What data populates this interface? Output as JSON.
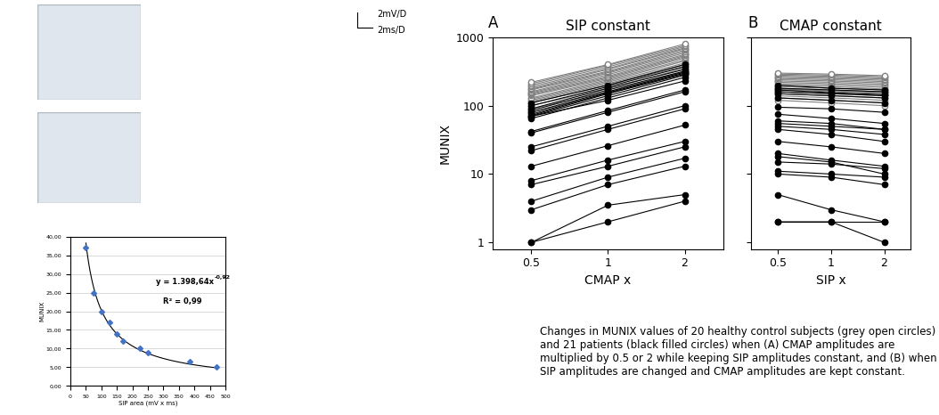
{
  "figure": {
    "caption": "Changes in MUNIX values of 20 healthy control subjects (grey open circles) and 21 patients (black filled circles) when (A) CMAP amplitudes are multiplied by 0.5 or 2 while keeping SIP amplitudes constant, and (B) when SIP amplitudes are changed and CMAP amplitudes are kept constant.",
    "scale_labels": [
      "2mV/D",
      "2ms/D"
    ]
  },
  "chart_data": [
    {
      "type": "scatter",
      "xlabel": "SIP area (mV x ms)",
      "ylabel": "MUNIX",
      "x": [
        50,
        75,
        100,
        125,
        150,
        170,
        225,
        250,
        385,
        470
      ],
      "values": [
        37,
        25,
        20,
        17,
        14,
        12,
        10,
        9,
        6.5,
        5
      ],
      "color": "#4472c4",
      "marker": "diamond",
      "grid": "y",
      "fit": {
        "coefficient": 1398.64,
        "exponent": -0.92
      },
      "annotations": [
        "y = 1.398,64x",
        "-0,92",
        "R² = 0,99"
      ],
      "xlim": [
        0,
        500
      ],
      "xticks": [
        0,
        50,
        100,
        150,
        200,
        250,
        300,
        350,
        400,
        450,
        500
      ],
      "ylim": [
        0,
        40
      ],
      "yticks": [
        {
          "value": 0,
          "label": "0,00"
        },
        {
          "value": 5,
          "label": "5,00"
        },
        {
          "value": 10,
          "label": "10,00"
        },
        {
          "value": 15,
          "label": "15,00"
        },
        {
          "value": 20,
          "label": "20,00"
        },
        {
          "value": 25,
          "label": "25,00"
        },
        {
          "value": 30,
          "label": "30,00"
        },
        {
          "value": 35,
          "label": "35,00"
        },
        {
          "value": 40,
          "label": "40,00"
        }
      ]
    },
    {
      "type": "line",
      "title": "SIP constant",
      "annotations": [
        "A"
      ],
      "xlabel": "CMAP x",
      "ylabel": "MUNIX",
      "categories": [
        "0.5",
        "1",
        "2"
      ],
      "log": "y",
      "ylim": [
        0.8,
        1000
      ],
      "yticks": [
        1,
        10,
        100,
        1000
      ],
      "series": [
        {
          "color": "#808080",
          "marker": "open_circle",
          "values": [
            90,
            160,
            320
          ]
        },
        {
          "color": "#808080",
          "marker": "open_circle",
          "values": [
            100,
            180,
            350
          ]
        },
        {
          "color": "#808080",
          "marker": "open_circle",
          "values": [
            110,
            200,
            380
          ]
        },
        {
          "color": "#808080",
          "marker": "open_circle",
          "values": [
            115,
            210,
            400
          ]
        },
        {
          "color": "#808080",
          "marker": "open_circle",
          "values": [
            120,
            220,
            420
          ]
        },
        {
          "color": "#808080",
          "marker": "open_circle",
          "values": [
            125,
            230,
            450
          ]
        },
        {
          "color": "#808080",
          "marker": "open_circle",
          "values": [
            130,
            240,
            470
          ]
        },
        {
          "color": "#808080",
          "marker": "open_circle",
          "values": [
            140,
            250,
            500
          ]
        },
        {
          "color": "#808080",
          "marker": "open_circle",
          "values": [
            145,
            260,
            520
          ]
        },
        {
          "color": "#808080",
          "marker": "open_circle",
          "values": [
            150,
            270,
            540
          ]
        },
        {
          "color": "#808080",
          "marker": "open_circle",
          "values": [
            155,
            285,
            560
          ]
        },
        {
          "color": "#808080",
          "marker": "open_circle",
          "values": [
            160,
            300,
            590
          ]
        },
        {
          "color": "#808080",
          "marker": "open_circle",
          "values": [
            170,
            310,
            620
          ]
        },
        {
          "color": "#808080",
          "marker": "open_circle",
          "values": [
            175,
            320,
            650
          ]
        },
        {
          "color": "#808080",
          "marker": "open_circle",
          "values": [
            180,
            340,
            680
          ]
        },
        {
          "color": "#808080",
          "marker": "open_circle",
          "values": [
            190,
            350,
            700
          ]
        },
        {
          "color": "#808080",
          "marker": "open_circle",
          "values": [
            200,
            370,
            730
          ]
        },
        {
          "color": "#808080",
          "marker": "open_circle",
          "values": [
            210,
            390,
            760
          ]
        },
        {
          "color": "#808080",
          "marker": "open_circle",
          "values": [
            220,
            400,
            800
          ]
        },
        {
          "color": "#808080",
          "marker": "open_circle",
          "values": [
            80,
            150,
            300
          ]
        },
        {
          "color": "#000000",
          "marker": "filled_circle",
          "values": [
            1,
            2,
            4
          ]
        },
        {
          "color": "#000000",
          "marker": "filled_circle",
          "values": [
            1,
            3.5,
            5
          ]
        },
        {
          "color": "#000000",
          "marker": "filled_circle",
          "values": [
            3,
            7,
            13
          ]
        },
        {
          "color": "#000000",
          "marker": "filled_circle",
          "values": [
            4,
            9,
            17
          ]
        },
        {
          "color": "#000000",
          "marker": "filled_circle",
          "values": [
            7,
            13,
            25
          ]
        },
        {
          "color": "#000000",
          "marker": "filled_circle",
          "values": [
            8,
            16,
            30
          ]
        },
        {
          "color": "#000000",
          "marker": "filled_circle",
          "values": [
            13,
            26,
            52
          ]
        },
        {
          "color": "#000000",
          "marker": "filled_circle",
          "values": [
            22,
            45,
            90
          ]
        },
        {
          "color": "#000000",
          "marker": "filled_circle",
          "values": [
            25,
            50,
            100
          ]
        },
        {
          "color": "#000000",
          "marker": "filled_circle",
          "values": [
            40,
            80,
            160
          ]
        },
        {
          "color": "#000000",
          "marker": "filled_circle",
          "values": [
            42,
            85,
            170
          ]
        },
        {
          "color": "#000000",
          "marker": "filled_circle",
          "values": [
            65,
            130,
            260
          ]
        },
        {
          "color": "#000000",
          "marker": "filled_circle",
          "values": [
            70,
            140,
            280
          ]
        },
        {
          "color": "#000000",
          "marker": "filled_circle",
          "values": [
            72,
            150,
            290
          ]
        },
        {
          "color": "#000000",
          "marker": "filled_circle",
          "values": [
            75,
            155,
            300
          ]
        },
        {
          "color": "#000000",
          "marker": "filled_circle",
          "values": [
            80,
            160,
            310
          ]
        },
        {
          "color": "#000000",
          "marker": "filled_circle",
          "values": [
            85,
            170,
            320
          ]
        },
        {
          "color": "#000000",
          "marker": "filled_circle",
          "values": [
            90,
            180,
            340
          ]
        },
        {
          "color": "#000000",
          "marker": "filled_circle",
          "values": [
            100,
            190,
            370
          ]
        },
        {
          "color": "#000000",
          "marker": "filled_circle",
          "values": [
            110,
            200,
            400
          ]
        },
        {
          "color": "#000000",
          "marker": "filled_circle",
          "values": [
            70,
            120,
            230
          ]
        }
      ]
    },
    {
      "type": "line",
      "title": "CMAP constant",
      "annotations": [
        "B"
      ],
      "xlabel": "SIP x",
      "categories": [
        "0.5",
        "1",
        "2"
      ],
      "log": "y",
      "ylim": [
        0.8,
        1000
      ],
      "yticks": [
        1,
        10,
        100,
        1000
      ],
      "tick_labels": "x",
      "series": [
        {
          "color": "#808080",
          "marker": "open_circle",
          "values": [
            130,
            120,
            110
          ]
        },
        {
          "color": "#808080",
          "marker": "open_circle",
          "values": [
            140,
            130,
            120
          ]
        },
        {
          "color": "#808080",
          "marker": "open_circle",
          "values": [
            150,
            140,
            130
          ]
        },
        {
          "color": "#808080",
          "marker": "open_circle",
          "values": [
            160,
            150,
            140
          ]
        },
        {
          "color": "#808080",
          "marker": "open_circle",
          "values": [
            170,
            160,
            150
          ]
        },
        {
          "color": "#808080",
          "marker": "open_circle",
          "values": [
            175,
            165,
            155
          ]
        },
        {
          "color": "#808080",
          "marker": "open_circle",
          "values": [
            180,
            170,
            160
          ]
        },
        {
          "color": "#808080",
          "marker": "open_circle",
          "values": [
            190,
            180,
            170
          ]
        },
        {
          "color": "#808080",
          "marker": "open_circle",
          "values": [
            200,
            190,
            175
          ]
        },
        {
          "color": "#808080",
          "marker": "open_circle",
          "values": [
            210,
            200,
            185
          ]
        },
        {
          "color": "#808080",
          "marker": "open_circle",
          "values": [
            220,
            210,
            195
          ]
        },
        {
          "color": "#808080",
          "marker": "open_circle",
          "values": [
            230,
            220,
            205
          ]
        },
        {
          "color": "#808080",
          "marker": "open_circle",
          "values": [
            240,
            230,
            215
          ]
        },
        {
          "color": "#808080",
          "marker": "open_circle",
          "values": [
            250,
            240,
            225
          ]
        },
        {
          "color": "#808080",
          "marker": "open_circle",
          "values": [
            260,
            250,
            235
          ]
        },
        {
          "color": "#808080",
          "marker": "open_circle",
          "values": [
            270,
            260,
            245
          ]
        },
        {
          "color": "#808080",
          "marker": "open_circle",
          "values": [
            280,
            270,
            255
          ]
        },
        {
          "color": "#808080",
          "marker": "open_circle",
          "values": [
            290,
            280,
            265
          ]
        },
        {
          "color": "#808080",
          "marker": "open_circle",
          "values": [
            300,
            290,
            275
          ]
        },
        {
          "color": "#808080",
          "marker": "open_circle",
          "values": [
            120,
            110,
            100
          ]
        },
        {
          "color": "#000000",
          "marker": "filled_circle",
          "values": [
            2,
            2,
            1
          ]
        },
        {
          "color": "#000000",
          "marker": "filled_circle",
          "values": [
            2,
            2,
            2
          ]
        },
        {
          "color": "#000000",
          "marker": "filled_circle",
          "values": [
            5,
            3,
            2
          ]
        },
        {
          "color": "#000000",
          "marker": "filled_circle",
          "values": [
            10,
            9,
            7
          ]
        },
        {
          "color": "#000000",
          "marker": "filled_circle",
          "values": [
            11,
            10,
            9
          ]
        },
        {
          "color": "#000000",
          "marker": "filled_circle",
          "values": [
            15,
            14,
            12
          ]
        },
        {
          "color": "#000000",
          "marker": "filled_circle",
          "values": [
            18,
            15,
            10
          ]
        },
        {
          "color": "#000000",
          "marker": "filled_circle",
          "values": [
            20,
            16,
            13
          ]
        },
        {
          "color": "#000000",
          "marker": "filled_circle",
          "values": [
            30,
            25,
            20
          ]
        },
        {
          "color": "#000000",
          "marker": "filled_circle",
          "values": [
            45,
            38,
            30
          ]
        },
        {
          "color": "#000000",
          "marker": "filled_circle",
          "values": [
            50,
            45,
            38
          ]
        },
        {
          "color": "#000000",
          "marker": "filled_circle",
          "values": [
            55,
            50,
            45
          ]
        },
        {
          "color": "#000000",
          "marker": "filled_circle",
          "values": [
            60,
            55,
            45
          ]
        },
        {
          "color": "#000000",
          "marker": "filled_circle",
          "values": [
            75,
            65,
            55
          ]
        },
        {
          "color": "#000000",
          "marker": "filled_circle",
          "values": [
            95,
            90,
            80
          ]
        },
        {
          "color": "#000000",
          "marker": "filled_circle",
          "values": [
            130,
            120,
            110
          ]
        },
        {
          "color": "#000000",
          "marker": "filled_circle",
          "values": [
            150,
            140,
            130
          ]
        },
        {
          "color": "#000000",
          "marker": "filled_circle",
          "values": [
            160,
            150,
            140
          ]
        },
        {
          "color": "#000000",
          "marker": "filled_circle",
          "values": [
            170,
            155,
            145
          ]
        },
        {
          "color": "#000000",
          "marker": "filled_circle",
          "values": [
            180,
            170,
            160
          ]
        },
        {
          "color": "#000000",
          "marker": "filled_circle",
          "values": [
            200,
            180,
            170
          ]
        }
      ]
    }
  ]
}
